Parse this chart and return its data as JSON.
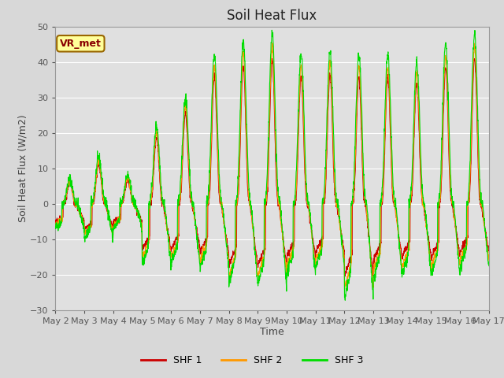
{
  "title": "Soil Heat Flux",
  "xlabel": "Time",
  "ylabel": "Soil Heat Flux (W/m2)",
  "ylim": [
    -30,
    50
  ],
  "yticks": [
    -30,
    -20,
    -10,
    0,
    10,
    20,
    30,
    40,
    50
  ],
  "n_days": 15,
  "colors": {
    "SHF 1": "#cc0000",
    "SHF 2": "#ff9900",
    "SHF 3": "#00dd00"
  },
  "legend_labels": [
    "SHF 1",
    "SHF 2",
    "SHF 3"
  ],
  "annotation_text": "VR_met",
  "annotation_bg": "#ffff99",
  "annotation_border": "#996600",
  "plot_bg": "#e0e0e0",
  "grid_color": "#ffffff",
  "fig_bg": "#d8d8d8",
  "title_fontsize": 12,
  "axis_label_fontsize": 9,
  "tick_fontsize": 8,
  "day_peaks": [
    7,
    13,
    8,
    22,
    30,
    42,
    46,
    48,
    42,
    43,
    42,
    42,
    40,
    45,
    48
  ],
  "day_troughs": [
    -7,
    -10,
    -7,
    -17,
    -17,
    -18,
    -23,
    -23,
    -20,
    -18,
    -27,
    -21,
    -20,
    -20,
    -18
  ]
}
